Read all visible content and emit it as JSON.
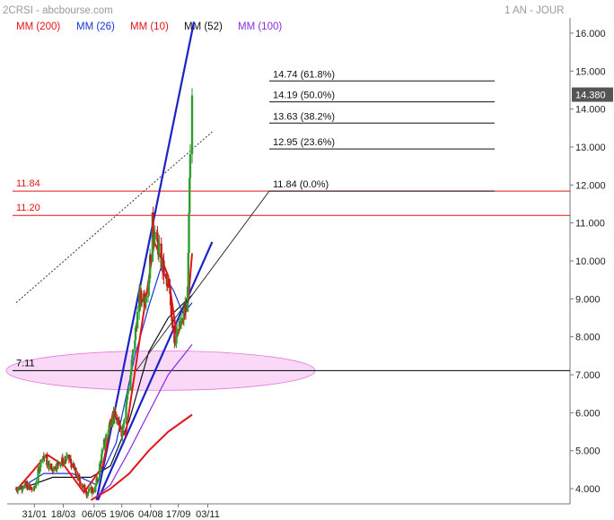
{
  "header": {
    "source": "2CRSI - abcbourse.com",
    "period": "1 AN - JOUR"
  },
  "legend": [
    {
      "label": "MM (200)",
      "color": "#e3141a"
    },
    {
      "label": "MM (26)",
      "color": "#1a33d6"
    },
    {
      "label": "MM (10)",
      "color": "#e3141a"
    },
    {
      "label": "MM (52)",
      "color": "#111111"
    },
    {
      "label": "MM (100)",
      "color": "#8a2be2"
    }
  ],
  "chart_data": {
    "type": "candlestick",
    "title": "",
    "xlabel": "",
    "ylabel": "",
    "x_ticks": [
      "31/01",
      "18/03",
      "06/05",
      "19/06",
      "04/08",
      "17/09",
      "03/11"
    ],
    "y_ticks": [
      "4.000",
      "5.000",
      "6.000",
      "7.000",
      "8.000",
      "9.000",
      "10.000",
      "11.000",
      "12.000",
      "13.000",
      "14.000",
      "15.000",
      "16.000"
    ],
    "ylim": [
      3.6,
      16.4
    ],
    "last_price": "14.380",
    "grid": false,
    "price_anchors": [
      [
        "2023-01-02",
        4.0
      ],
      [
        "2023-01-16",
        4.1
      ],
      [
        "2023-01-30",
        3.95
      ],
      [
        "2023-02-13",
        4.9
      ],
      [
        "2023-02-27",
        4.5
      ],
      [
        "2023-03-13",
        4.7
      ],
      [
        "2023-03-27",
        4.8
      ],
      [
        "2023-04-10",
        4.3
      ],
      [
        "2023-04-24",
        3.9
      ],
      [
        "2023-05-08",
        4.0
      ],
      [
        "2023-05-22",
        5.2
      ],
      [
        "2023-06-05",
        6.0
      ],
      [
        "2023-06-19",
        5.5
      ],
      [
        "2023-07-03",
        7.0
      ],
      [
        "2023-07-17",
        9.0
      ],
      [
        "2023-07-31",
        9.2
      ],
      [
        "2023-08-07",
        11.0
      ],
      [
        "2023-08-21",
        10.0
      ],
      [
        "2023-09-04",
        9.0
      ],
      [
        "2023-09-11",
        7.9
      ],
      [
        "2023-09-25",
        8.5
      ],
      [
        "2023-10-02",
        9.1
      ],
      [
        "2023-10-05",
        12.0
      ],
      [
        "2023-10-09",
        14.38
      ]
    ],
    "moving_averages": [
      {
        "name": "MM (200)",
        "color": "#e3141a",
        "points": [
          [
            "2023-05-01",
            3.7
          ],
          [
            "2023-06-01",
            4.0
          ],
          [
            "2023-07-01",
            4.4
          ],
          [
            "2023-08-01",
            5.0
          ],
          [
            "2023-09-01",
            5.5
          ],
          [
            "2023-10-09",
            5.95
          ]
        ]
      },
      {
        "name": "MM (100)",
        "color": "#8a2be2",
        "points": [
          [
            "2023-05-10",
            3.8
          ],
          [
            "2023-06-01",
            4.1
          ],
          [
            "2023-07-01",
            5.0
          ],
          [
            "2023-08-01",
            6.0
          ],
          [
            "2023-09-01",
            7.0
          ],
          [
            "2023-10-09",
            7.8
          ]
        ]
      },
      {
        "name": "MM (52)",
        "color": "#111111",
        "points": [
          [
            "2023-01-02",
            3.95
          ],
          [
            "2023-03-01",
            4.3
          ],
          [
            "2023-05-01",
            4.3
          ],
          [
            "2023-06-01",
            4.6
          ],
          [
            "2023-07-01",
            5.8
          ],
          [
            "2023-08-01",
            7.6
          ],
          [
            "2023-09-01",
            8.5
          ],
          [
            "2023-10-09",
            9.1
          ]
        ]
      },
      {
        "name": "MM (26)",
        "color": "#1a33d6",
        "points": [
          [
            "2023-01-02",
            3.95
          ],
          [
            "2023-02-15",
            4.4
          ],
          [
            "2023-04-01",
            4.4
          ],
          [
            "2023-05-10",
            4.1
          ],
          [
            "2023-06-10",
            5.2
          ],
          [
            "2023-07-10",
            7.5
          ],
          [
            "2023-08-01",
            8.8
          ],
          [
            "2023-08-20",
            9.8
          ],
          [
            "2023-09-10",
            9.2
          ],
          [
            "2023-09-25",
            8.6
          ],
          [
            "2023-10-09",
            8.9
          ]
        ]
      },
      {
        "name": "MM (10)",
        "color": "#e3141a",
        "points": [
          [
            "2023-01-02",
            3.95
          ],
          [
            "2023-02-20",
            4.9
          ],
          [
            "2023-03-20",
            4.6
          ],
          [
            "2023-04-20",
            3.9
          ],
          [
            "2023-05-20",
            4.6
          ],
          [
            "2023-06-05",
            6.0
          ],
          [
            "2023-06-25",
            5.4
          ],
          [
            "2023-07-20",
            8.2
          ],
          [
            "2023-08-10",
            10.5
          ],
          [
            "2023-09-01",
            9.6
          ],
          [
            "2023-09-15",
            8.0
          ],
          [
            "2023-10-02",
            8.8
          ],
          [
            "2023-10-09",
            10.2
          ]
        ]
      }
    ],
    "horizontal_levels": [
      {
        "label": "11.84",
        "value": 11.84,
        "color": "#e3141a"
      },
      {
        "label": "11.20",
        "value": 11.2,
        "color": "#e3141a"
      },
      {
        "label": "7.11",
        "value": 7.11,
        "color": "#000000"
      }
    ],
    "fibonacci_levels": [
      {
        "label": "14.74  (61.8%)",
        "value": 14.74
      },
      {
        "label": "14.19  (50.0%)",
        "value": 14.19
      },
      {
        "label": "13.63  (38.2%)",
        "value": 13.63
      },
      {
        "label": "12.95  (23.6%)",
        "value": 12.95
      },
      {
        "label": "11.84  (0.0%)",
        "value": 11.84
      }
    ],
    "fibonacci_start": [
      "2023-07-12",
      7.11
    ],
    "trend_lines": [
      {
        "style": "solid",
        "color": "#1a22c8",
        "from": [
          "2023-05-10",
          3.7
        ],
        "to": [
          "2023-10-12",
          16.3
        ]
      },
      {
        "style": "solid",
        "color": "#1a22c8",
        "from": [
          "2023-05-12",
          3.7
        ],
        "to": [
          "2023-11-10",
          10.5
        ]
      },
      {
        "style": "dotted",
        "color": "#333333",
        "from": [
          "2023-01-02",
          8.9
        ],
        "to": [
          "2023-11-10",
          13.4
        ]
      }
    ],
    "highlight_zone": {
      "date": "2023-08-20",
      "value": 7.11,
      "color": "#f5b8f0"
    }
  }
}
